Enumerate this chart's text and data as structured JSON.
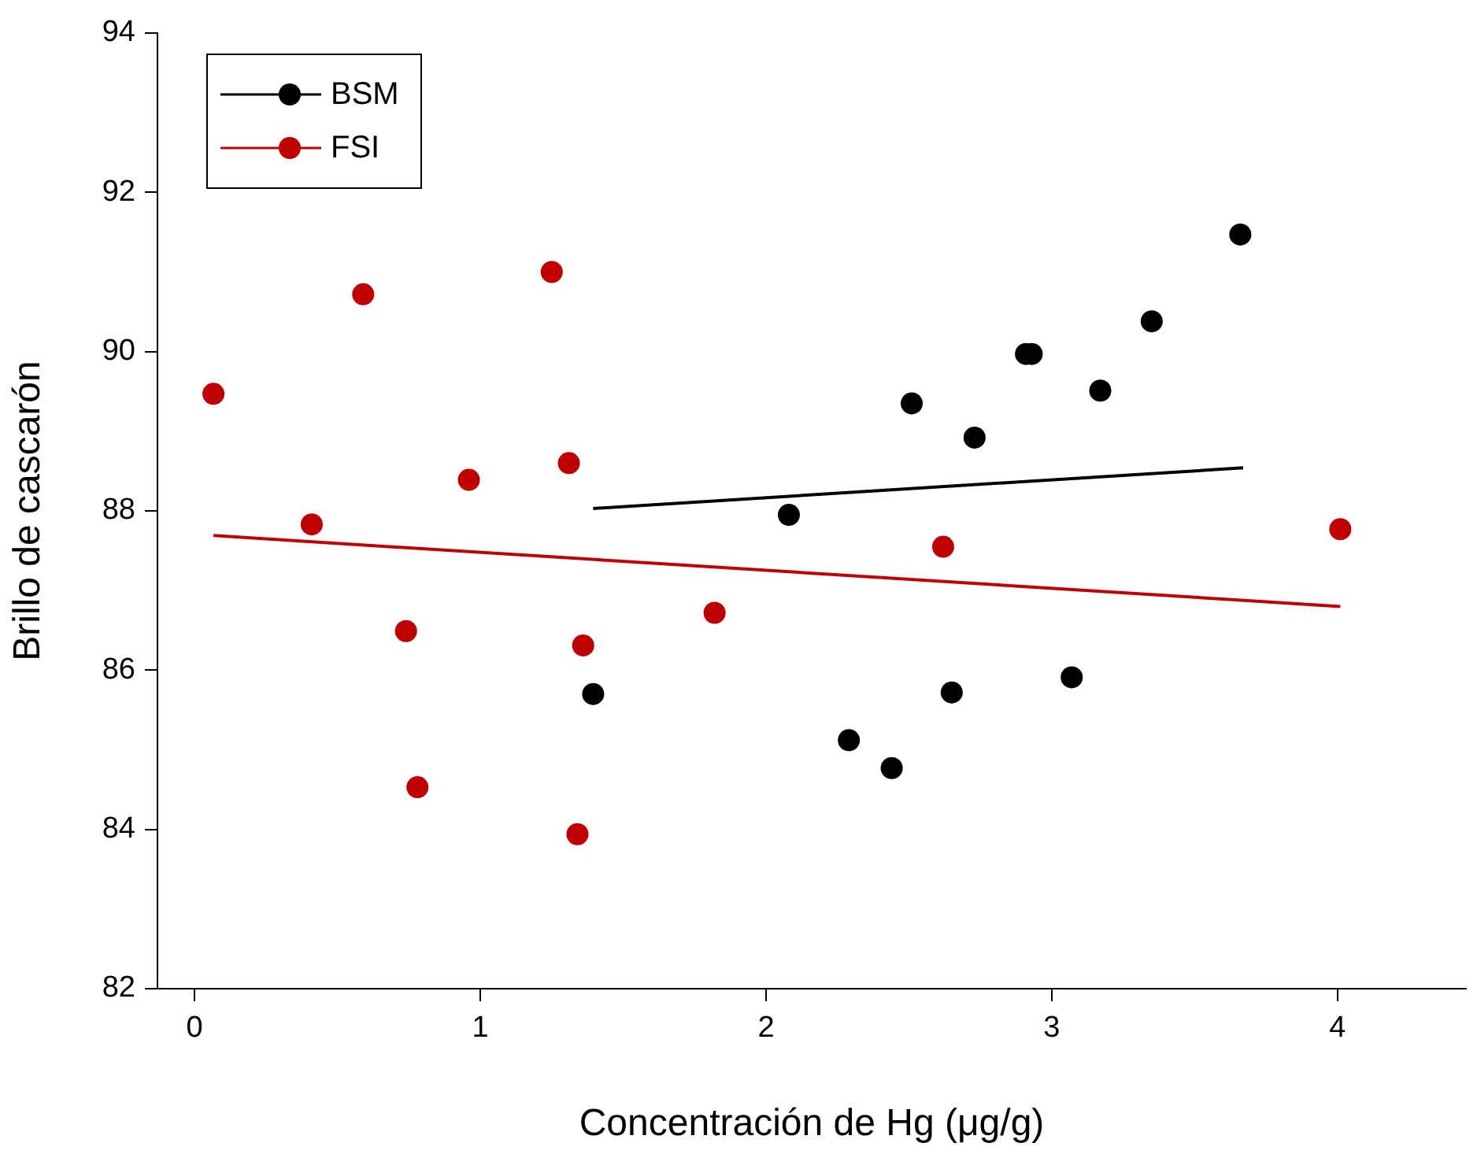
{
  "chart_data": {
    "type": "scatter",
    "xlabel": "Concentración de Hg (μg/g)",
    "ylabel": "Brillo de cascarón",
    "xlim": [
      -0.13,
      4.45
    ],
    "xticks": [
      0,
      1,
      2,
      3,
      4
    ],
    "ylim": [
      82,
      94
    ],
    "yticks": [
      82,
      84,
      86,
      88,
      90,
      92,
      94
    ],
    "grid": false,
    "legend": "top left",
    "series": [
      {
        "name": "BSM",
        "marker": "circle",
        "color": "#000000",
        "x": [
          1.395,
          2.08,
          2.29,
          2.44,
          2.51,
          2.65,
          2.73,
          2.91,
          2.93,
          3.07,
          3.17,
          3.35,
          3.66
        ],
        "values": [
          85.7,
          87.95,
          85.12,
          84.77,
          89.35,
          85.72,
          88.92,
          89.97,
          89.97,
          85.91,
          89.51,
          90.38,
          91.47
        ]
      },
      {
        "name": "FSI",
        "marker": "circle",
        "color": "#c00000",
        "x": [
          0.066,
          0.41,
          0.59,
          0.74,
          0.78,
          0.96,
          1.25,
          1.31,
          1.34,
          1.36,
          1.82,
          2.62,
          4.01
        ],
        "values": [
          89.47,
          87.83,
          90.72,
          86.49,
          84.53,
          88.39,
          91.0,
          88.6,
          83.94,
          86.31,
          86.72,
          87.55,
          87.77
        ]
      },
      {
        "type": "line",
        "marker": "none",
        "color": "#000000",
        "x": [
          1.395,
          3.67
        ],
        "values": [
          88.03,
          88.54
        ]
      },
      {
        "type": "line",
        "marker": "none",
        "color": "#c00000",
        "x": [
          0.066,
          4.01
        ],
        "values": [
          87.69,
          86.8
        ]
      }
    ]
  }
}
